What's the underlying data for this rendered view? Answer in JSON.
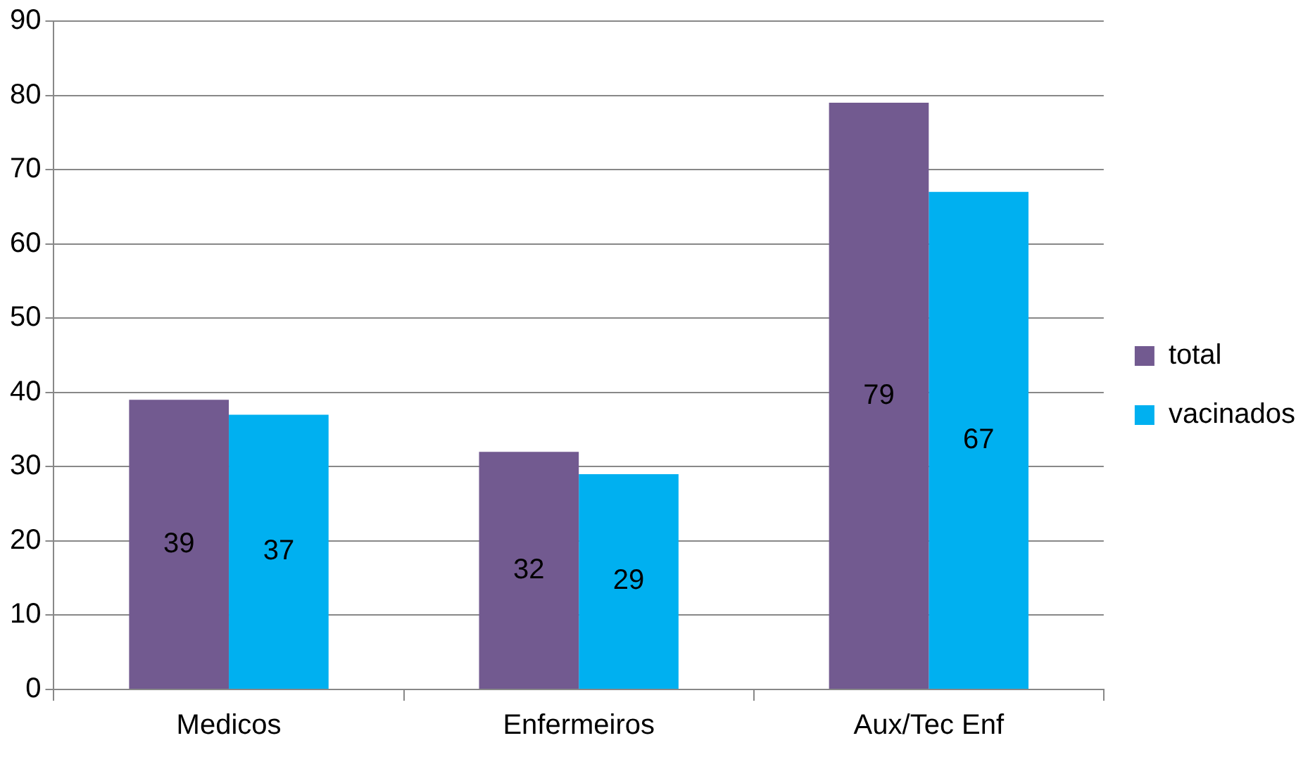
{
  "chart_data": {
    "type": "bar",
    "categories": [
      "Medicos",
      "Enfermeiros",
      "Aux/Tec Enf"
    ],
    "series": [
      {
        "name": "total",
        "color": "#725a90",
        "values": [
          39,
          32,
          79
        ]
      },
      {
        "name": "vacinados",
        "color": "#00b0f0",
        "values": [
          37,
          29,
          67
        ]
      }
    ],
    "ylim": [
      0,
      90
    ],
    "yticks": [
      0,
      10,
      20,
      30,
      40,
      50,
      60,
      70,
      80,
      90
    ],
    "grid": "y",
    "legend": "right",
    "data_labels": true
  }
}
